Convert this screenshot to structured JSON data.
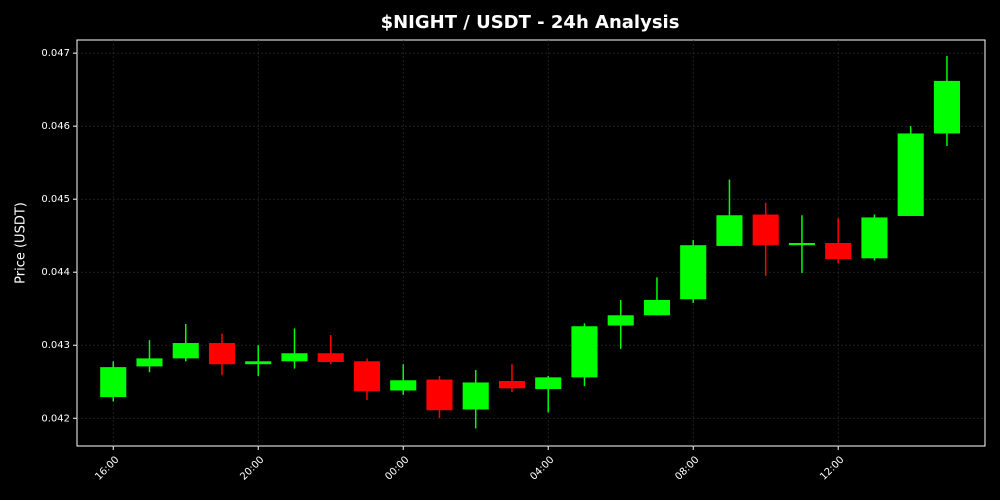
{
  "chart_data": {
    "type": "candlestick",
    "title": "$NIGHT / USDT - 24h Analysis",
    "y_label": "Price (USDT)",
    "categories": [
      "16:00",
      null,
      null,
      null,
      "20:00",
      null,
      null,
      null,
      "00:00",
      null,
      null,
      null,
      "04:00",
      null,
      null,
      null,
      "08:00",
      null,
      null,
      null,
      "12:00",
      null,
      null,
      null
    ],
    "open": [
      0.04229,
      0.04271,
      0.04282,
      0.04303,
      0.04274,
      0.04278,
      0.04289,
      0.04278,
      0.04238,
      0.04253,
      0.04212,
      0.04251,
      0.0424,
      0.04256,
      0.04327,
      0.04341,
      0.04363,
      0.04436,
      0.04479,
      0.04437,
      0.0444,
      0.04419,
      0.04477,
      0.0459
    ],
    "high": [
      0.04278,
      0.04307,
      0.04329,
      0.04316,
      0.043,
      0.04323,
      0.04314,
      0.04282,
      0.04274,
      0.04258,
      0.04266,
      0.04274,
      0.04258,
      0.0433,
      0.04362,
      0.04393,
      0.04444,
      0.04527,
      0.04495,
      0.04478,
      0.04474,
      0.04479,
      0.046,
      0.04696
    ],
    "low": [
      0.04223,
      0.04263,
      0.04278,
      0.04259,
      0.04258,
      0.04268,
      0.04274,
      0.04225,
      0.04232,
      0.042,
      0.04186,
      0.04236,
      0.04208,
      0.04244,
      0.04295,
      0.04341,
      0.04358,
      0.04436,
      0.04395,
      0.04399,
      0.04412,
      0.04416,
      0.04477,
      0.04573
    ],
    "close": [
      0.0427,
      0.04282,
      0.04303,
      0.04274,
      0.04278,
      0.04289,
      0.04277,
      0.04237,
      0.04252,
      0.04211,
      0.04249,
      0.04241,
      0.04256,
      0.04326,
      0.04341,
      0.04362,
      0.04437,
      0.04478,
      0.04437,
      0.0444,
      0.04418,
      0.04475,
      0.0459,
      0.04662
    ],
    "up_color": "#00ff00",
    "down_color": "#ff0000",
    "ylim": [
      0.04162,
      0.04718
    ],
    "yticks": [
      0.042,
      0.043,
      0.044,
      0.045,
      0.046,
      0.047
    ],
    "grid": true
  }
}
